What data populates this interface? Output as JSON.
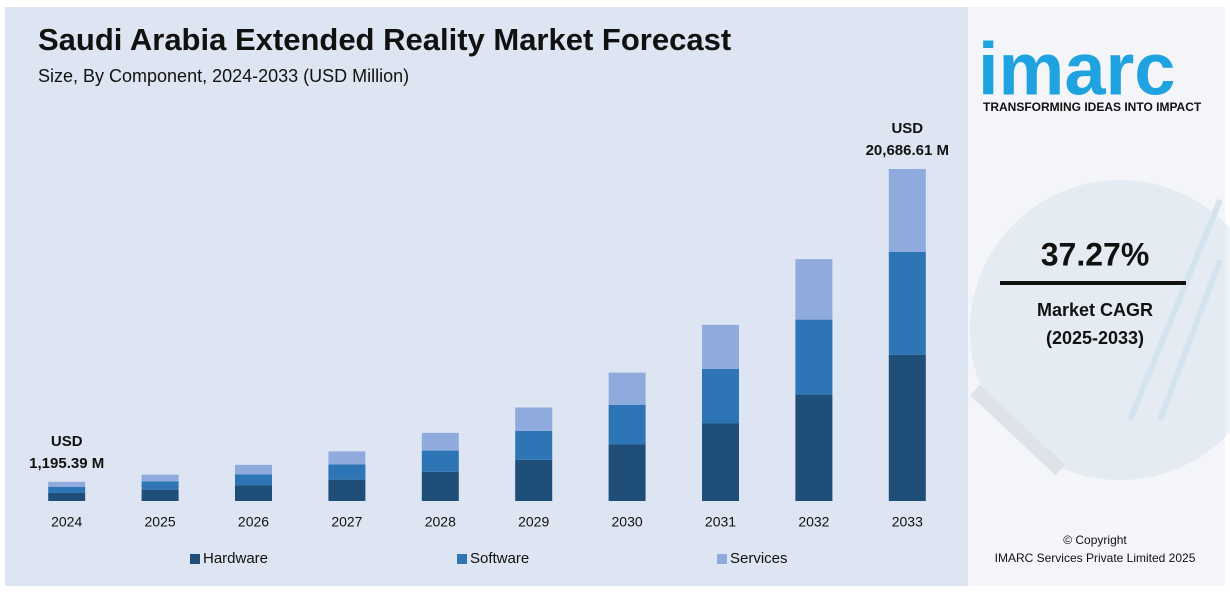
{
  "chart_data": {
    "type": "stacked-bar",
    "title": "Saudi Arabia Extended Reality Market Forecast",
    "subtitle": "Size, By Component, 2024-2033 (USD Million)",
    "categories": [
      "2024",
      "2025",
      "2026",
      "2027",
      "2028",
      "2029",
      "2030",
      "2031",
      "2032",
      "2033"
    ],
    "series": [
      {
        "name": "Hardware",
        "color": "#1f4e79",
        "values": [
          502,
          706,
          969,
          1330,
          1825,
          2563,
          3519,
          4830,
          6631,
          9102
        ]
      },
      {
        "name": "Software",
        "color": "#2e75b6",
        "values": [
          383,
          509,
          698,
          959,
          1316,
          1806,
          2479,
          3403,
          4672,
          6413
        ]
      },
      {
        "name": "Services",
        "color": "#8faadc",
        "values": [
          310,
          426,
          586,
          803,
          1103,
          1457,
          2000,
          2745,
          3767,
          5172
        ]
      }
    ],
    "annotations": [
      {
        "category": "2024",
        "lines": [
          "USD",
          "1,195.39 M"
        ]
      },
      {
        "category": "2033",
        "lines": [
          "USD",
          "20,686.61 M"
        ]
      }
    ],
    "legend": "bottom"
  },
  "sidebar": {
    "logo": "imarc",
    "tagline": "TRANSFORMING IDEAS INTO IMPACT",
    "cagr": "37.27%",
    "cagr_label": "Market CAGR",
    "cagr_period": "(2025-2033)",
    "copyright": "© Copyright",
    "company": "IMARC Services Private Limited 2025"
  }
}
